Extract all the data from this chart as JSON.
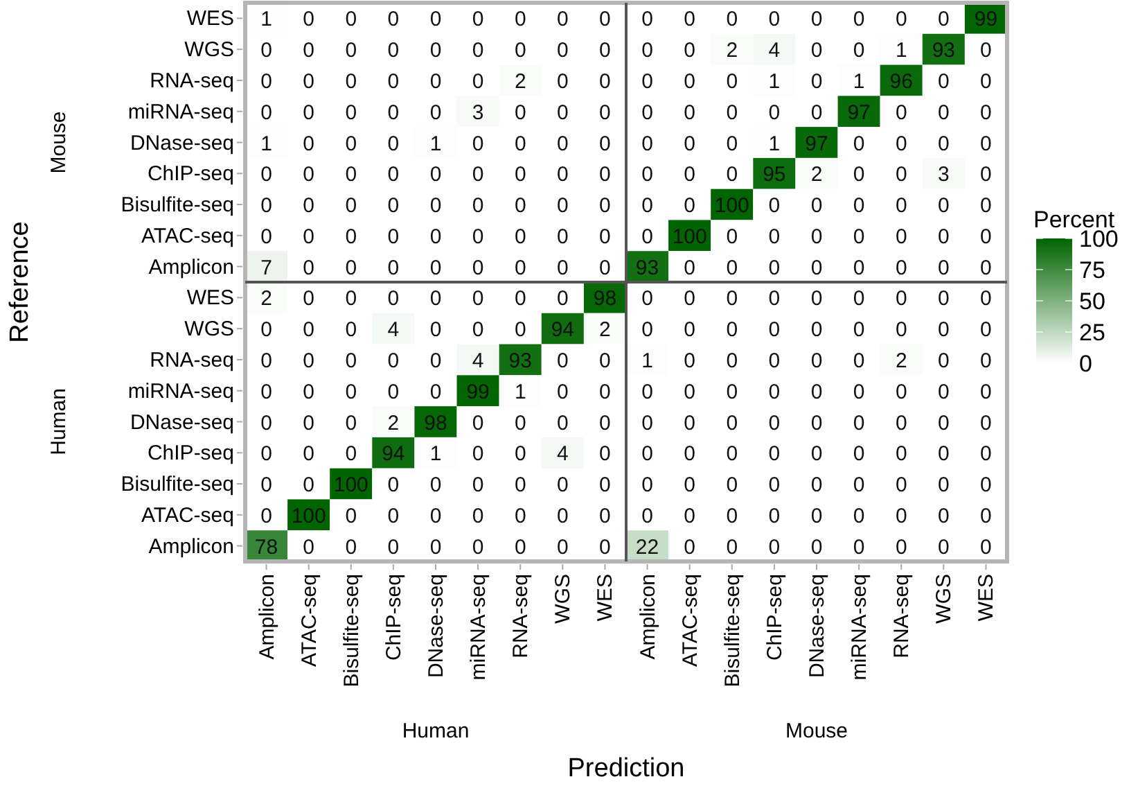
{
  "chart_data": {
    "type": "heatmap",
    "xlabel": "Prediction",
    "ylabel": "Reference",
    "clabel": "Percent",
    "categories": [
      "Amplicon",
      "ATAC-seq",
      "Bisulfite-seq",
      "ChIP-seq",
      "DNase-seq",
      "miRNA-seq",
      "RNA-seq",
      "WGS",
      "WES",
      "Amplicon",
      "ATAC-seq",
      "Bisulfite-seq",
      "ChIP-seq",
      "DNase-seq",
      "miRNA-seq",
      "RNA-seq",
      "WGS",
      "WES"
    ],
    "y_categories": [
      "WES",
      "WGS",
      "RNA-seq",
      "miRNA-seq",
      "DNase-seq",
      "ChIP-seq",
      "Bisulfite-seq",
      "ATAC-seq",
      "Amplicon",
      "WES",
      "WGS",
      "RNA-seq",
      "miRNA-seq",
      "DNase-seq",
      "ChIP-seq",
      "Bisulfite-seq",
      "ATAC-seq",
      "Amplicon"
    ],
    "annotations": [
      "Human",
      "Mouse",
      "Mouse",
      "Human"
    ],
    "cells": [
      [
        1,
        0,
        0,
        0,
        0,
        0,
        0,
        0,
        0,
        0,
        0,
        0,
        0,
        0,
        0,
        0,
        0,
        99
      ],
      [
        0,
        0,
        0,
        0,
        0,
        0,
        0,
        0,
        0,
        0,
        0,
        2,
        4,
        0,
        0,
        1,
        93,
        0
      ],
      [
        0,
        0,
        0,
        0,
        0,
        0,
        2,
        0,
        0,
        0,
        0,
        0,
        1,
        0,
        1,
        96,
        0,
        0
      ],
      [
        0,
        0,
        0,
        0,
        0,
        3,
        0,
        0,
        0,
        0,
        0,
        0,
        0,
        0,
        97,
        0,
        0,
        0
      ],
      [
        1,
        0,
        0,
        0,
        1,
        0,
        0,
        0,
        0,
        0,
        0,
        0,
        1,
        97,
        0,
        0,
        0,
        0
      ],
      [
        0,
        0,
        0,
        0,
        0,
        0,
        0,
        0,
        0,
        0,
        0,
        0,
        95,
        2,
        0,
        0,
        3,
        0
      ],
      [
        0,
        0,
        0,
        0,
        0,
        0,
        0,
        0,
        0,
        0,
        0,
        100,
        0,
        0,
        0,
        0,
        0,
        0
      ],
      [
        0,
        0,
        0,
        0,
        0,
        0,
        0,
        0,
        0,
        0,
        100,
        0,
        0,
        0,
        0,
        0,
        0,
        0
      ],
      [
        7,
        0,
        0,
        0,
        0,
        0,
        0,
        0,
        0,
        93,
        0,
        0,
        0,
        0,
        0,
        0,
        0,
        0
      ],
      [
        2,
        0,
        0,
        0,
        0,
        0,
        0,
        0,
        98,
        0,
        0,
        0,
        0,
        0,
        0,
        0,
        0,
        0
      ],
      [
        0,
        0,
        0,
        4,
        0,
        0,
        0,
        94,
        2,
        0,
        0,
        0,
        0,
        0,
        0,
        0,
        0,
        0
      ],
      [
        0,
        0,
        0,
        0,
        0,
        4,
        93,
        0,
        0,
        1,
        0,
        0,
        0,
        0,
        0,
        2,
        0,
        0
      ],
      [
        0,
        0,
        0,
        0,
        0,
        99,
        1,
        0,
        0,
        0,
        0,
        0,
        0,
        0,
        0,
        0,
        0,
        0
      ],
      [
        0,
        0,
        0,
        2,
        98,
        0,
        0,
        0,
        0,
        0,
        0,
        0,
        0,
        0,
        0,
        0,
        0,
        0
      ],
      [
        0,
        0,
        0,
        94,
        1,
        0,
        0,
        4,
        0,
        0,
        0,
        0,
        0,
        0,
        0,
        0,
        0,
        0
      ],
      [
        0,
        0,
        100,
        0,
        0,
        0,
        0,
        0,
        0,
        0,
        0,
        0,
        0,
        0,
        0,
        0,
        0,
        0
      ],
      [
        0,
        100,
        0,
        0,
        0,
        0,
        0,
        0,
        0,
        0,
        0,
        0,
        0,
        0,
        0,
        0,
        0,
        0
      ],
      [
        78,
        0,
        0,
        0,
        0,
        0,
        0,
        0,
        0,
        22,
        0,
        0,
        0,
        0,
        0,
        0,
        0,
        0
      ]
    ],
    "clim": [
      0,
      100
    ],
    "cticks": [
      0,
      25,
      50,
      75,
      100
    ],
    "color": "#006400",
    "data_labels": true
  }
}
